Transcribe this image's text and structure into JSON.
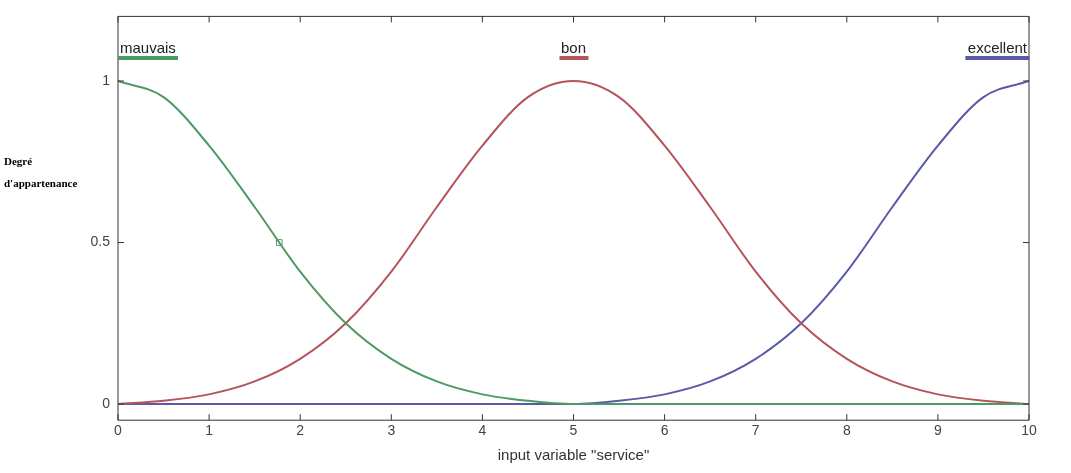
{
  "chart_data": {
    "type": "line",
    "xlabel": "input variable \"service\"",
    "ylabel": "Degré\nd'appartenance",
    "x": [
      0,
      0.5,
      1,
      1.5,
      2,
      2.5,
      3,
      3.5,
      4,
      4.5,
      5,
      5.5,
      6,
      6.5,
      7,
      7.5,
      8,
      8.5,
      9,
      9.5,
      10
    ],
    "series": [
      {
        "name": "mauvais",
        "color": "#4e9a64",
        "values": [
          1,
          0.95,
          0.8,
          0.61,
          0.41,
          0.25,
          0.14,
          0.07,
          0.03,
          0.01,
          0,
          0,
          0,
          0,
          0,
          0,
          0,
          0,
          0,
          0,
          0
        ]
      },
      {
        "name": "bon",
        "color": "#b5545c",
        "values": [
          0,
          0.01,
          0.03,
          0.07,
          0.14,
          0.25,
          0.41,
          0.61,
          0.8,
          0.95,
          1,
          0.95,
          0.8,
          0.61,
          0.41,
          0.25,
          0.14,
          0.07,
          0.03,
          0.01,
          0
        ]
      },
      {
        "name": "excellent",
        "color": "#5a5aa8",
        "values": [
          0,
          0,
          0,
          0,
          0,
          0,
          0,
          0,
          0,
          0,
          0,
          0.01,
          0.03,
          0.07,
          0.14,
          0.25,
          0.41,
          0.61,
          0.8,
          0.95,
          1
        ]
      },
      {
        "type": "scatter",
        "color": "#4e9a64",
        "marker": "square",
        "x": [
          1.77
        ],
        "values": [
          0.5
        ]
      }
    ],
    "xlim": [
      0,
      10
    ],
    "xticks": [
      0,
      1,
      2,
      3,
      4,
      5,
      6,
      7,
      8,
      9,
      10
    ],
    "ylim": [
      -0.05,
      1.2
    ],
    "yticks": [
      0,
      0.5,
      1
    ],
    "grid": false,
    "marker": "none",
    "line_style": "solid"
  }
}
